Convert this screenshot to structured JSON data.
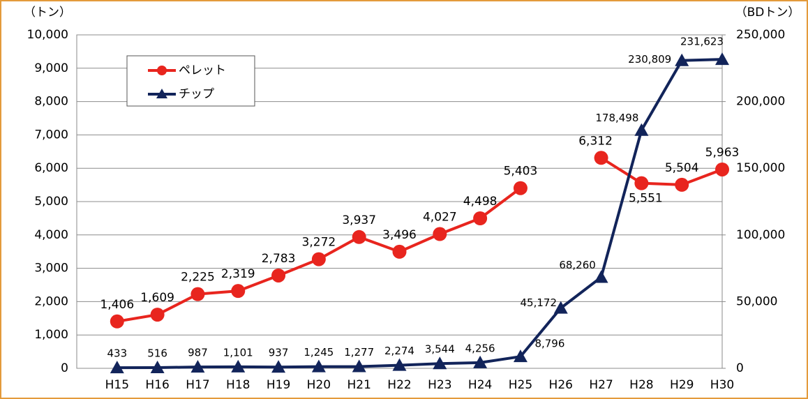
{
  "chart_data": {
    "type": "line",
    "y_unit_label": "（トン）",
    "y2_unit_label": "（BDトン）",
    "categories": [
      "H15",
      "H16",
      "H17",
      "H18",
      "H19",
      "H20",
      "H21",
      "H22",
      "H23",
      "H24",
      "H25",
      "H26",
      "H27",
      "H28",
      "H29",
      "H30"
    ],
    "series": [
      {
        "name": "ペレット",
        "color": "#e8251e",
        "axis": "y",
        "values": [
          1406,
          1609,
          2225,
          2319,
          2783,
          3272,
          3937,
          3496,
          4027,
          4498,
          5403,
          null,
          6312,
          5551,
          5504,
          5963
        ],
        "value_labels": [
          "1,406",
          "1,609",
          "2,225",
          "2,319",
          "2,783",
          "3,272",
          "3,937",
          "3,496",
          "4,027",
          "4,498",
          "5,403",
          null,
          "6,312",
          "5,551",
          "5,504",
          "5,963"
        ]
      },
      {
        "name": "チップ",
        "color": "#12245a",
        "axis": "y2",
        "values": [
          433,
          516,
          987,
          1101,
          937,
          1245,
          1277,
          2274,
          3544,
          4256,
          8796,
          45172,
          68260,
          178498,
          230809,
          231623
        ],
        "value_labels": [
          "433",
          "516",
          "987",
          "1,101",
          "937",
          "1,245",
          "1,277",
          "2,274",
          "3,544",
          "4,256",
          "8,796",
          "45,172",
          "68,260",
          "178,498",
          "230,809",
          "231,623"
        ]
      }
    ],
    "ylim": [
      0,
      10000
    ],
    "yticks": [
      0,
      {
        "value": 1000,
        "label": "1,000"
      },
      {
        "value": 2000,
        "label": "2,000"
      },
      {
        "value": 3000,
        "label": "3,000"
      },
      {
        "value": 4000,
        "label": "4,000"
      },
      {
        "value": 5000,
        "label": "5,000"
      },
      {
        "value": 6000,
        "label": "6,000"
      },
      {
        "value": 7000,
        "label": "7,000"
      },
      {
        "value": 8000,
        "label": "8,000"
      },
      {
        "value": 9000,
        "label": "9,000"
      },
      {
        "value": 10000,
        "label": "10,000"
      }
    ],
    "y2lim": [
      0,
      250000
    ],
    "y2ticks": [
      0,
      {
        "value": 50000,
        "label": "50,000"
      },
      {
        "value": 100000,
        "label": "100,000"
      },
      {
        "value": 150000,
        "label": "150,000"
      },
      {
        "value": 200000,
        "label": "200,000"
      },
      {
        "value": 250000,
        "label": "250,000"
      }
    ],
    "grid": true,
    "legend": "upper left"
  }
}
